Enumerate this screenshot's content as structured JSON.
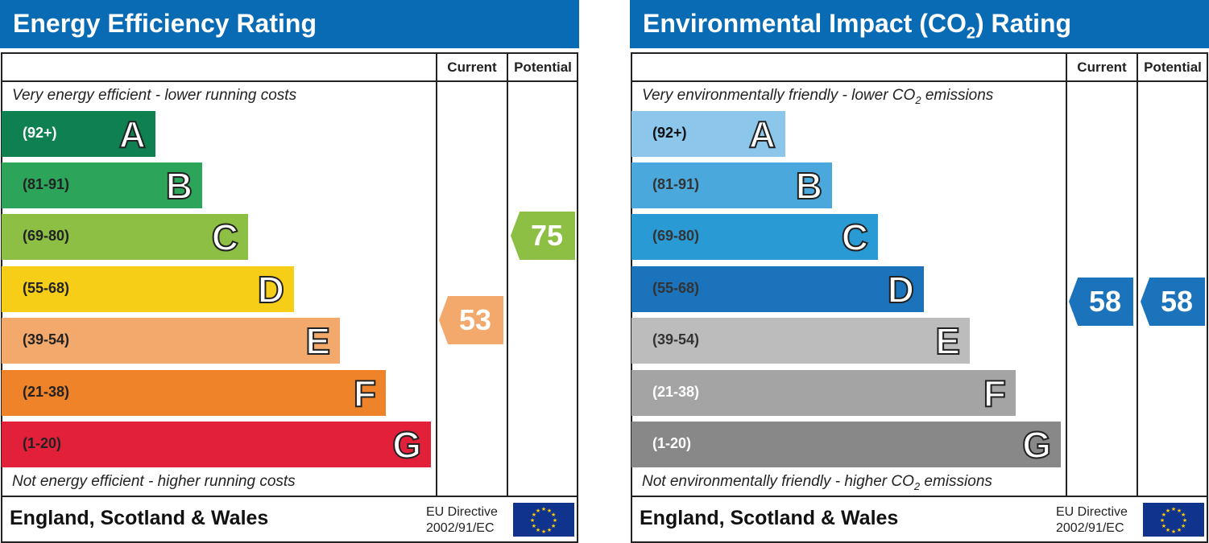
{
  "chart_data": [
    {
      "type": "bar",
      "title": "Energy Efficiency Rating",
      "columns": [
        "Current",
        "Potential"
      ],
      "top_caption": "Very energy efficient - lower running costs",
      "bottom_caption": "Not energy efficient - higher running costs",
      "bands": [
        {
          "letter": "A",
          "range": "(92+)",
          "color": "#0f8050",
          "text": "#fff"
        },
        {
          "letter": "B",
          "range": "(81-91)",
          "color": "#2ca55a",
          "text": "#222"
        },
        {
          "letter": "C",
          "range": "(69-80)",
          "color": "#8cbf44",
          "text": "#222"
        },
        {
          "letter": "D",
          "range": "(55-68)",
          "color": "#f6cd17",
          "text": "#222"
        },
        {
          "letter": "E",
          "range": "(39-54)",
          "color": "#f2a96b",
          "text": "#222"
        },
        {
          "letter": "F",
          "range": "(21-38)",
          "color": "#ee8329",
          "text": "#222"
        },
        {
          "letter": "G",
          "range": "(1-20)",
          "color": "#e3203a",
          "text": "#222"
        }
      ],
      "current": {
        "value": "53",
        "band": "E"
      },
      "potential": {
        "value": "75",
        "band": "C"
      },
      "region": "England, Scotland & Wales",
      "directive": [
        "EU Directive",
        "2002/91/EC"
      ]
    },
    {
      "type": "bar",
      "title": "Environmental Impact (CO",
      "title_sub": "2",
      "title_end": ") Rating",
      "columns": [
        "Current",
        "Potential"
      ],
      "top_caption": "Very environmentally friendly - lower CO",
      "top_caption_end": " emissions",
      "bottom_caption": "Not environmentally friendly - higher CO",
      "bottom_caption_end": " emissions",
      "bands": [
        {
          "letter": "A",
          "range": "(92+)",
          "color": "#8cc6ea",
          "text": "#111"
        },
        {
          "letter": "B",
          "range": "(81-91)",
          "color": "#4aa8dd",
          "text": "#333"
        },
        {
          "letter": "C",
          "range": "(69-80)",
          "color": "#2a9ad4",
          "text": "#333"
        },
        {
          "letter": "D",
          "range": "(55-68)",
          "color": "#1a73bb",
          "text": "#333"
        },
        {
          "letter": "E",
          "range": "(39-54)",
          "color": "#bcbcbc",
          "text": "#333"
        },
        {
          "letter": "F",
          "range": "(21-38)",
          "color": "#a4a4a4",
          "text": "#fff"
        },
        {
          "letter": "G",
          "range": "(1-20)",
          "color": "#888888",
          "text": "#fff"
        }
      ],
      "current": {
        "value": "58",
        "band": "D"
      },
      "potential": {
        "value": "58",
        "band": "D"
      },
      "region": "England, Scotland & Wales",
      "directive": [
        "EU Directive",
        "2002/91/EC"
      ]
    }
  ]
}
